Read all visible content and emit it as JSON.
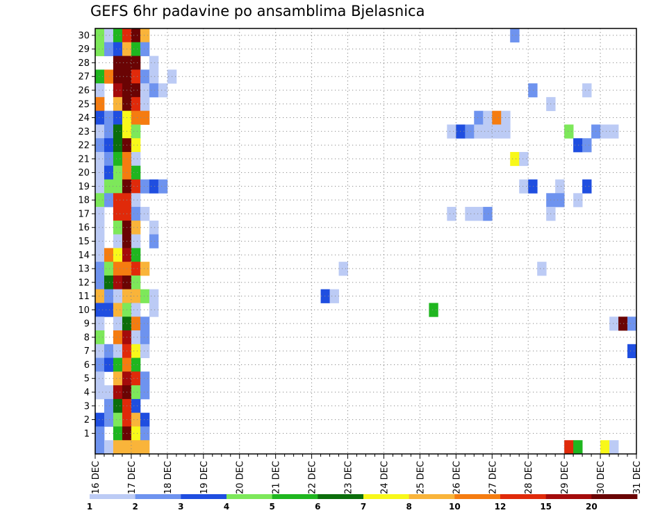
{
  "chart_data": {
    "type": "heatmap",
    "title": "GEFS 6hr padavine po ansamblima Bjelasnica",
    "xlabel": "",
    "ylabel": "",
    "x_start": "16 DEC",
    "x_step_hours": 6,
    "x_ticks": [
      "16 DEC",
      "17 DEC",
      "18 DEC",
      "19 DEC",
      "20 DEC",
      "21 DEC",
      "22 DEC",
      "23 DEC",
      "24 DEC",
      "25 DEC",
      "26 DEC",
      "27 DEC",
      "28 DEC",
      "29 DEC",
      "30 DEC",
      "31 DEC"
    ],
    "y_ticks": [
      "1",
      "2",
      "3",
      "4",
      "5",
      "6",
      "7",
      "8",
      "9",
      "10",
      "11",
      "12",
      "13",
      "14",
      "15",
      "16",
      "17",
      "18",
      "19",
      "20",
      "21",
      "22",
      "23",
      "24",
      "25",
      "26",
      "27",
      "28",
      "29",
      "30"
    ],
    "ylim": [
      0,
      30
    ],
    "grid": true,
    "colorbar": {
      "labels": [
        "1",
        "2",
        "3",
        "4",
        "5",
        "6",
        "7",
        "8",
        "10",
        "12",
        "15",
        "20"
      ],
      "colors": [
        "#bccbf5",
        "#6e93ef",
        "#1f4ee0",
        "#7de85a",
        "#1fb61f",
        "#0b6e0b",
        "#f8f81a",
        "#f9b43a",
        "#f57c10",
        "#e02a0a",
        "#a40b0b",
        "#6a0404"
      ]
    },
    "cells": [
      [
        30,
        0,
        "#7de85a"
      ],
      [
        30,
        1,
        "#bccbf5"
      ],
      [
        30,
        2,
        "#1fb61f"
      ],
      [
        30,
        3,
        "#e02a0a"
      ],
      [
        30,
        4,
        "#6a0404"
      ],
      [
        30,
        5,
        "#f9b43a"
      ],
      [
        30,
        46,
        "#6e93ef"
      ],
      [
        29,
        0,
        "#7de85a"
      ],
      [
        29,
        1,
        "#6e93ef"
      ],
      [
        29,
        2,
        "#1f4ee0"
      ],
      [
        29,
        3,
        "#f9b43a"
      ],
      [
        29,
        4,
        "#1fb61f"
      ],
      [
        29,
        5,
        "#6e93ef"
      ],
      [
        28,
        2,
        "#6a0404"
      ],
      [
        28,
        3,
        "#6a0404"
      ],
      [
        28,
        4,
        "#6a0404"
      ],
      [
        28,
        6,
        "#bccbf5"
      ],
      [
        27,
        0,
        "#1fb61f"
      ],
      [
        27,
        1,
        "#f57c10"
      ],
      [
        27,
        2,
        "#6a0404"
      ],
      [
        27,
        3,
        "#6a0404"
      ],
      [
        27,
        4,
        "#e02a0a"
      ],
      [
        27,
        5,
        "#6e93ef"
      ],
      [
        27,
        6,
        "#bccbf5"
      ],
      [
        27,
        8,
        "#bccbf5"
      ],
      [
        26,
        0,
        "#bccbf5"
      ],
      [
        26,
        2,
        "#a40b0b"
      ],
      [
        26,
        3,
        "#6a0404"
      ],
      [
        26,
        4,
        "#6a0404"
      ],
      [
        26,
        5,
        "#bccbf5"
      ],
      [
        26,
        6,
        "#6e93ef"
      ],
      [
        26,
        7,
        "#bccbf5"
      ],
      [
        26,
        48,
        "#6e93ef"
      ],
      [
        26,
        54,
        "#bccbf5"
      ],
      [
        25,
        0,
        "#f57c10"
      ],
      [
        25,
        2,
        "#f9b43a"
      ],
      [
        25,
        3,
        "#6a0404"
      ],
      [
        25,
        4,
        "#e02a0a"
      ],
      [
        25,
        5,
        "#bccbf5"
      ],
      [
        25,
        50,
        "#bccbf5"
      ],
      [
        24,
        0,
        "#1f4ee0"
      ],
      [
        24,
        1,
        "#6e93ef"
      ],
      [
        24,
        2,
        "#1f4ee0"
      ],
      [
        24,
        3,
        "#f8f81a"
      ],
      [
        24,
        4,
        "#f57c10"
      ],
      [
        24,
        5,
        "#f57c10"
      ],
      [
        24,
        42,
        "#6e93ef"
      ],
      [
        24,
        43,
        "#bccbf5"
      ],
      [
        24,
        44,
        "#f57c10"
      ],
      [
        24,
        45,
        "#bccbf5"
      ],
      [
        23,
        0,
        "#bccbf5"
      ],
      [
        23,
        1,
        "#6e93ef"
      ],
      [
        23,
        2,
        "#0b6e0b"
      ],
      [
        23,
        3,
        "#f8f81a"
      ],
      [
        23,
        4,
        "#7de85a"
      ],
      [
        23,
        39,
        "#bccbf5"
      ],
      [
        23,
        40,
        "#1f4ee0"
      ],
      [
        23,
        41,
        "#6e93ef"
      ],
      [
        23,
        42,
        "#bccbf5"
      ],
      [
        23,
        43,
        "#bccbf5"
      ],
      [
        23,
        44,
        "#bccbf5"
      ],
      [
        23,
        45,
        "#bccbf5"
      ],
      [
        23,
        52,
        "#7de85a"
      ],
      [
        23,
        55,
        "#6e93ef"
      ],
      [
        23,
        56,
        "#bccbf5"
      ],
      [
        23,
        57,
        "#bccbf5"
      ],
      [
        22,
        0,
        "#6e93ef"
      ],
      [
        22,
        1,
        "#1f4ee0"
      ],
      [
        22,
        2,
        "#0b6e0b"
      ],
      [
        22,
        3,
        "#6a0404"
      ],
      [
        22,
        4,
        "#f8f81a"
      ],
      [
        22,
        53,
        "#1f4ee0"
      ],
      [
        22,
        54,
        "#6e93ef"
      ],
      [
        21,
        0,
        "#bccbf5"
      ],
      [
        21,
        1,
        "#6e93ef"
      ],
      [
        21,
        2,
        "#1fb61f"
      ],
      [
        21,
        3,
        "#f57c10"
      ],
      [
        21,
        4,
        "#bccbf5"
      ],
      [
        21,
        46,
        "#f8f81a"
      ],
      [
        21,
        47,
        "#bccbf5"
      ],
      [
        20,
        0,
        "#bccbf5"
      ],
      [
        20,
        1,
        "#1f4ee0"
      ],
      [
        20,
        2,
        "#7de85a"
      ],
      [
        20,
        3,
        "#f57c10"
      ],
      [
        20,
        4,
        "#1fb61f"
      ],
      [
        19,
        0,
        "#bccbf5"
      ],
      [
        19,
        1,
        "#7de85a"
      ],
      [
        19,
        2,
        "#7de85a"
      ],
      [
        19,
        3,
        "#6a0404"
      ],
      [
        19,
        4,
        "#e02a0a"
      ],
      [
        19,
        5,
        "#6e93ef"
      ],
      [
        19,
        6,
        "#1f4ee0"
      ],
      [
        19,
        7,
        "#6e93ef"
      ],
      [
        19,
        47,
        "#bccbf5"
      ],
      [
        19,
        48,
        "#1f4ee0"
      ],
      [
        19,
        51,
        "#bccbf5"
      ],
      [
        19,
        54,
        "#1f4ee0"
      ],
      [
        18,
        0,
        "#7de85a"
      ],
      [
        18,
        1,
        "#6e93ef"
      ],
      [
        18,
        2,
        "#e02a0a"
      ],
      [
        18,
        3,
        "#e02a0a"
      ],
      [
        18,
        4,
        "#bccbf5"
      ],
      [
        18,
        50,
        "#6e93ef"
      ],
      [
        18,
        51,
        "#6e93ef"
      ],
      [
        18,
        53,
        "#bccbf5"
      ],
      [
        17,
        0,
        "#bccbf5"
      ],
      [
        17,
        2,
        "#e02a0a"
      ],
      [
        17,
        3,
        "#e02a0a"
      ],
      [
        17,
        4,
        "#6e93ef"
      ],
      [
        17,
        5,
        "#bccbf5"
      ],
      [
        17,
        39,
        "#bccbf5"
      ],
      [
        17,
        41,
        "#bccbf5"
      ],
      [
        17,
        42,
        "#bccbf5"
      ],
      [
        17,
        43,
        "#6e93ef"
      ],
      [
        17,
        50,
        "#bccbf5"
      ],
      [
        16,
        0,
        "#bccbf5"
      ],
      [
        16,
        2,
        "#7de85a"
      ],
      [
        16,
        3,
        "#6a0404"
      ],
      [
        16,
        4,
        "#f9b43a"
      ],
      [
        16,
        6,
        "#bccbf5"
      ],
      [
        15,
        0,
        "#bccbf5"
      ],
      [
        15,
        2,
        "#bccbf5"
      ],
      [
        15,
        3,
        "#6a0404"
      ],
      [
        15,
        4,
        "#bccbf5"
      ],
      [
        15,
        6,
        "#6e93ef"
      ],
      [
        14,
        0,
        "#bccbf5"
      ],
      [
        14,
        1,
        "#f57c10"
      ],
      [
        14,
        2,
        "#f8f81a"
      ],
      [
        14,
        3,
        "#a40b0b"
      ],
      [
        14,
        4,
        "#1fb61f"
      ],
      [
        13,
        0,
        "#6e93ef"
      ],
      [
        13,
        1,
        "#7de85a"
      ],
      [
        13,
        2,
        "#f57c10"
      ],
      [
        13,
        3,
        "#f57c10"
      ],
      [
        13,
        4,
        "#e02a0a"
      ],
      [
        13,
        5,
        "#f9b43a"
      ],
      [
        13,
        27,
        "#bccbf5"
      ],
      [
        13,
        49,
        "#bccbf5"
      ],
      [
        12,
        0,
        "#6e93ef"
      ],
      [
        12,
        1,
        "#0b6e0b"
      ],
      [
        12,
        2,
        "#a40b0b"
      ],
      [
        12,
        3,
        "#6a0404"
      ],
      [
        12,
        4,
        "#7de85a"
      ],
      [
        11,
        0,
        "#f9b43a"
      ],
      [
        11,
        1,
        "#6e93ef"
      ],
      [
        11,
        2,
        "#bccbf5"
      ],
      [
        11,
        3,
        "#f9b43a"
      ],
      [
        11,
        4,
        "#f9b43a"
      ],
      [
        11,
        5,
        "#7de85a"
      ],
      [
        11,
        6,
        "#bccbf5"
      ],
      [
        11,
        25,
        "#1f4ee0"
      ],
      [
        11,
        26,
        "#bccbf5"
      ],
      [
        10,
        0,
        "#1f4ee0"
      ],
      [
        10,
        1,
        "#1f4ee0"
      ],
      [
        10,
        2,
        "#f9b43a"
      ],
      [
        10,
        3,
        "#7de85a"
      ],
      [
        10,
        4,
        "#bccbf5"
      ],
      [
        10,
        6,
        "#bccbf5"
      ],
      [
        10,
        37,
        "#1fb61f"
      ],
      [
        9,
        0,
        "#bccbf5"
      ],
      [
        9,
        2,
        "#bccbf5"
      ],
      [
        9,
        3,
        "#0b6e0b"
      ],
      [
        9,
        4,
        "#f57c10"
      ],
      [
        9,
        5,
        "#6e93ef"
      ],
      [
        9,
        57,
        "#bccbf5"
      ],
      [
        9,
        58,
        "#6a0404"
      ],
      [
        9,
        59,
        "#6e93ef"
      ],
      [
        8,
        0,
        "#7de85a"
      ],
      [
        8,
        2,
        "#f57c10"
      ],
      [
        8,
        3,
        "#a40b0b"
      ],
      [
        8,
        4,
        "#bccbf5"
      ],
      [
        8,
        5,
        "#6e93ef"
      ],
      [
        7,
        0,
        "#bccbf5"
      ],
      [
        7,
        1,
        "#6e93ef"
      ],
      [
        7,
        2,
        "#bccbf5"
      ],
      [
        7,
        3,
        "#e02a0a"
      ],
      [
        7,
        4,
        "#f8f81a"
      ],
      [
        7,
        5,
        "#bccbf5"
      ],
      [
        7,
        59,
        "#1f4ee0"
      ],
      [
        6,
        0,
        "#6e93ef"
      ],
      [
        6,
        1,
        "#1f4ee0"
      ],
      [
        6,
        2,
        "#1fb61f"
      ],
      [
        6,
        3,
        "#f57c10"
      ],
      [
        6,
        4,
        "#1fb61f"
      ],
      [
        5,
        0,
        "#bccbf5"
      ],
      [
        5,
        2,
        "#f9b43a"
      ],
      [
        5,
        3,
        "#a40b0b"
      ],
      [
        5,
        4,
        "#e02a0a"
      ],
      [
        5,
        5,
        "#6e93ef"
      ],
      [
        4,
        0,
        "#bccbf5"
      ],
      [
        4,
        1,
        "#bccbf5"
      ],
      [
        4,
        2,
        "#a40b0b"
      ],
      [
        4,
        3,
        "#6a0404"
      ],
      [
        4,
        4,
        "#7de85a"
      ],
      [
        4,
        5,
        "#6e93ef"
      ],
      [
        3,
        1,
        "#6e93ef"
      ],
      [
        3,
        2,
        "#0b6e0b"
      ],
      [
        3,
        3,
        "#e02a0a"
      ],
      [
        3,
        4,
        "#1f4ee0"
      ],
      [
        2,
        0,
        "#1f4ee0"
      ],
      [
        2,
        1,
        "#6e93ef"
      ],
      [
        2,
        2,
        "#7de85a"
      ],
      [
        2,
        3,
        "#e02a0a"
      ],
      [
        2,
        4,
        "#f9b43a"
      ],
      [
        2,
        5,
        "#1f4ee0"
      ],
      [
        1,
        0,
        "#6e93ef"
      ],
      [
        1,
        2,
        "#1fb61f"
      ],
      [
        1,
        3,
        "#6a0404"
      ],
      [
        1,
        4,
        "#f8f81a"
      ],
      [
        1,
        5,
        "#6e93ef"
      ],
      [
        0,
        0,
        "#6e93ef"
      ],
      [
        0,
        1,
        "#bccbf5"
      ],
      [
        0,
        2,
        "#f9b43a"
      ],
      [
        0,
        3,
        "#f9b43a"
      ],
      [
        0,
        4,
        "#f9b43a"
      ],
      [
        0,
        5,
        "#f9b43a"
      ],
      [
        0,
        52,
        "#e02a0a"
      ],
      [
        0,
        53,
        "#1fb61f"
      ],
      [
        0,
        56,
        "#f8f81a"
      ],
      [
        0,
        57,
        "#bccbf5"
      ]
    ]
  }
}
